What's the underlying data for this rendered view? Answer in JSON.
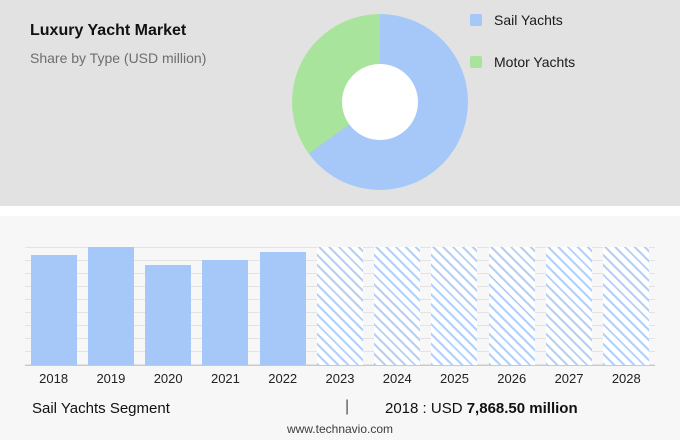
{
  "header": {
    "title": "Luxury Yacht Market",
    "subtitle": "Share by Type (USD million)"
  },
  "legend": {
    "items": [
      {
        "label": "Sail Yachts",
        "color": "#a6c8f8"
      },
      {
        "label": "Motor Yachts",
        "color": "#a9e49c"
      }
    ]
  },
  "chart_data": [
    {
      "type": "pie",
      "donut": true,
      "title": "Luxury Yacht Market — Share by Type (USD million)",
      "labels": [
        "Sail Yachts",
        "Motor Yachts"
      ],
      "values_pct": [
        65,
        35
      ],
      "colors": [
        "#a6c8f8",
        "#a9e49c"
      ],
      "legend_position": "right"
    },
    {
      "type": "bar",
      "title": "Sail Yachts Segment",
      "unit": "USD million",
      "categories": [
        "2018",
        "2019",
        "2020",
        "2021",
        "2022",
        "2023",
        "2024",
        "2025",
        "2026",
        "2027",
        "2028"
      ],
      "bars": [
        {
          "year": "2018",
          "height_pct": 93,
          "style": "solid"
        },
        {
          "year": "2019",
          "height_pct": 100,
          "style": "solid"
        },
        {
          "year": "2020",
          "height_pct": 85,
          "style": "solid"
        },
        {
          "year": "2021",
          "height_pct": 89,
          "style": "solid"
        },
        {
          "year": "2022",
          "height_pct": 96,
          "style": "solid"
        },
        {
          "year": "2023",
          "height_pct": 100,
          "style": "hatched"
        },
        {
          "year": "2024",
          "height_pct": 100,
          "style": "hatched"
        },
        {
          "year": "2025",
          "height_pct": 100,
          "style": "hatched"
        },
        {
          "year": "2026",
          "height_pct": 100,
          "style": "hatched"
        },
        {
          "year": "2027",
          "height_pct": 100,
          "style": "hatched"
        },
        {
          "year": "2028",
          "height_pct": 100,
          "style": "hatched"
        }
      ],
      "known_values": {
        "2018": 7868.5
      },
      "forecast_years": [
        "2023",
        "2024",
        "2025",
        "2026",
        "2027",
        "2028"
      ],
      "grid": true
    }
  ],
  "footer": {
    "segment_label": "Sail Yachts Segment",
    "separator": "|",
    "value_prefix": "2018 : USD",
    "value_bold": "7,868.50 million",
    "website": "www.technavio.com"
  },
  "colors": {
    "top_panel_bg": "#e2e2e2",
    "bottom_bg": "#f7f7f7",
    "sail_blue": "#a6c8f8",
    "motor_green": "#a9e49c",
    "grid_line": "#e3e3e3",
    "text_dark": "#111111",
    "text_gray": "#6e6e6e"
  }
}
